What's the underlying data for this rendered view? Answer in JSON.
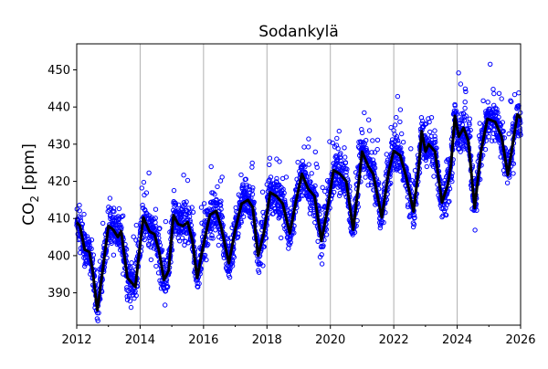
{
  "chart_data": {
    "type": "scatter",
    "title": "Sodankylä",
    "xlabel": "",
    "ylabel_main": "CO",
    "ylabel_sub": "2",
    "ylabel_unit": " [ppm]",
    "xlim": [
      2012,
      2026
    ],
    "ylim": [
      381.3,
      457
    ],
    "x_ticks": [
      2012,
      2014,
      2016,
      2018,
      2020,
      2022,
      2024,
      2026
    ],
    "x_tick_labels": [
      "2012",
      "2014",
      "2016",
      "2018",
      "2020",
      "2022",
      "2024",
      "2026"
    ],
    "x_minor_ticks": [
      2013,
      2015,
      2017,
      2019,
      2021,
      2023,
      2025
    ],
    "y_ticks": [
      390,
      400,
      410,
      420,
      430,
      440,
      450
    ],
    "y_tick_labels": [
      "390",
      "400",
      "410",
      "420",
      "430",
      "440",
      "450"
    ],
    "grid": "vertical lines at major x ticks",
    "colors": {
      "observations": "#0000ff",
      "smoothed": "#000000",
      "grid": "#b0b0b0"
    },
    "series": [
      {
        "style": "hollow blue circles (observations scattered around the smoothed curve, spread about ±5 ppm with upward outliers)"
      },
      {
        "style": "thick black line (smoothed)",
        "points": [
          [
            2012.0,
            409
          ],
          [
            2012.1,
            408
          ],
          [
            2012.25,
            401.6
          ],
          [
            2012.4,
            401
          ],
          [
            2012.5,
            396
          ],
          [
            2012.65,
            385.3
          ],
          [
            2012.8,
            395
          ],
          [
            2013.0,
            408
          ],
          [
            2013.15,
            407
          ],
          [
            2013.3,
            405
          ],
          [
            2013.4,
            406.6
          ],
          [
            2013.6,
            394
          ],
          [
            2013.85,
            391.6
          ],
          [
            2014.0,
            403
          ],
          [
            2014.1,
            410.3
          ],
          [
            2014.3,
            406.5
          ],
          [
            2014.45,
            405.8
          ],
          [
            2014.6,
            401
          ],
          [
            2014.75,
            393.5
          ],
          [
            2014.9,
            396
          ],
          [
            2015.05,
            410.9
          ],
          [
            2015.2,
            408.5
          ],
          [
            2015.35,
            408
          ],
          [
            2015.5,
            409
          ],
          [
            2015.65,
            404
          ],
          [
            2015.8,
            394
          ],
          [
            2015.95,
            401
          ],
          [
            2016.2,
            411
          ],
          [
            2016.4,
            412
          ],
          [
            2016.55,
            408
          ],
          [
            2016.8,
            398
          ],
          [
            2017.0,
            407
          ],
          [
            2017.2,
            414
          ],
          [
            2017.4,
            415
          ],
          [
            2017.55,
            413
          ],
          [
            2017.72,
            400
          ],
          [
            2017.9,
            406
          ],
          [
            2018.1,
            417
          ],
          [
            2018.3,
            416
          ],
          [
            2018.5,
            414
          ],
          [
            2018.72,
            406
          ],
          [
            2018.9,
            414
          ],
          [
            2019.1,
            422
          ],
          [
            2019.3,
            418
          ],
          [
            2019.5,
            416
          ],
          [
            2019.72,
            404
          ],
          [
            2019.9,
            412
          ],
          [
            2020.1,
            423
          ],
          [
            2020.3,
            422
          ],
          [
            2020.5,
            420
          ],
          [
            2020.72,
            407
          ],
          [
            2020.9,
            420
          ],
          [
            2021.0,
            428
          ],
          [
            2021.2,
            424
          ],
          [
            2021.35,
            422
          ],
          [
            2021.62,
            410.3
          ],
          [
            2021.85,
            423
          ],
          [
            2022.0,
            428.2
          ],
          [
            2022.2,
            427
          ],
          [
            2022.4,
            421
          ],
          [
            2022.62,
            411.9
          ],
          [
            2022.78,
            423
          ],
          [
            2022.88,
            433.5
          ],
          [
            2023.0,
            428
          ],
          [
            2023.1,
            430
          ],
          [
            2023.3,
            428
          ],
          [
            2023.52,
            414.3
          ],
          [
            2023.7,
            419
          ],
          [
            2023.8,
            424
          ],
          [
            2023.93,
            437.6
          ],
          [
            2024.05,
            432
          ],
          [
            2024.2,
            434.4
          ],
          [
            2024.35,
            431
          ],
          [
            2024.55,
            412.8
          ],
          [
            2024.75,
            428
          ],
          [
            2024.95,
            436.8
          ],
          [
            2025.2,
            436
          ],
          [
            2025.4,
            432
          ],
          [
            2025.6,
            421.7
          ],
          [
            2025.75,
            430
          ],
          [
            2025.9,
            438
          ],
          [
            2026.0,
            437
          ]
        ]
      }
    ]
  }
}
